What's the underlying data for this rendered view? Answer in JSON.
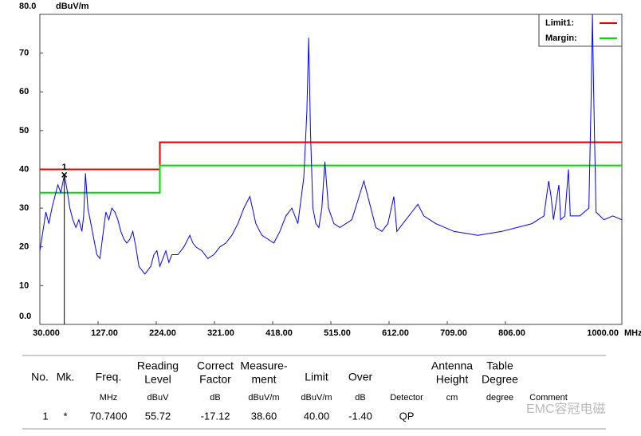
{
  "chart_data": {
    "type": "line",
    "y_axis_label": "dBuV/m",
    "x_axis_label": "MHz",
    "xlim": [
      30,
      1000
    ],
    "ylim": [
      0,
      80
    ],
    "xticks": [
      {
        "value": 30,
        "label": "30.000"
      },
      {
        "value": 127,
        "label": "127.00"
      },
      {
        "value": 224,
        "label": "224.00"
      },
      {
        "value": 321,
        "label": "321.00"
      },
      {
        "value": 418,
        "label": "418.00"
      },
      {
        "value": 515,
        "label": "515.00"
      },
      {
        "value": 612,
        "label": "612.00"
      },
      {
        "value": 709,
        "label": "709.00"
      },
      {
        "value": 806,
        "label": "806.00"
      },
      {
        "value": 1000,
        "label": "1000.00"
      }
    ],
    "yticks": [
      {
        "value": 0,
        "label": "0.0"
      },
      10,
      20,
      30,
      40,
      50,
      60,
      70,
      {
        "value": 80,
        "label": "80.0"
      }
    ],
    "trace": {
      "color": "#0000ff",
      "x": [
        30,
        35,
        40,
        45,
        50,
        55,
        60,
        65,
        70.74,
        75,
        80,
        85,
        90,
        95,
        100,
        103,
        106,
        110,
        115,
        120,
        125,
        130,
        135,
        140,
        145,
        150,
        155,
        160,
        165,
        170,
        175,
        180,
        185,
        190,
        195,
        200,
        205,
        210,
        215,
        220,
        225,
        230,
        235,
        240,
        245,
        250,
        260,
        270,
        280,
        285,
        290,
        300,
        310,
        320,
        330,
        340,
        350,
        360,
        370,
        380,
        390,
        400,
        410,
        420,
        430,
        440,
        450,
        460,
        470,
        475,
        478,
        481,
        485,
        490,
        495,
        500,
        505,
        511,
        520,
        530,
        540,
        550,
        560,
        570,
        580,
        590,
        600,
        610,
        620,
        625,
        640,
        650,
        660,
        670,
        690,
        720,
        760,
        800,
        850,
        870,
        878,
        882,
        886,
        895,
        898,
        905,
        911,
        914,
        930,
        945,
        949,
        951,
        953,
        957,
        970,
        985,
        1000
      ],
      "values": [
        19,
        24,
        29,
        26,
        30,
        33,
        36,
        34,
        38.6,
        35,
        30,
        27,
        25,
        27,
        24,
        28,
        39,
        30,
        26,
        22,
        18,
        17,
        23,
        29,
        27,
        30,
        29,
        27,
        24,
        22,
        21,
        22,
        24,
        20,
        15,
        14,
        13,
        14,
        15,
        18,
        19,
        15,
        17,
        19,
        16,
        18,
        18,
        20,
        23,
        21,
        20,
        19,
        17,
        18,
        20,
        21,
        23,
        26,
        30,
        33,
        26,
        23,
        22,
        21,
        24,
        28,
        30,
        26,
        38,
        55,
        74,
        50,
        30,
        26,
        25,
        30,
        42,
        30,
        26,
        25,
        26,
        27,
        32,
        37,
        31,
        25,
        24,
        26,
        33,
        24,
        27,
        29,
        31,
        28,
        26,
        24,
        23,
        24,
        26,
        28,
        37,
        33,
        27,
        36,
        27,
        28,
        40,
        28,
        28,
        30,
        60,
        80,
        60,
        29,
        27,
        28,
        27
      ]
    },
    "series": [
      {
        "name": "Limit1:",
        "color": "#ee0000",
        "x": [
          30,
          230,
          230,
          1000
        ],
        "values": [
          40,
          40,
          47,
          47
        ]
      },
      {
        "name": "Margin:",
        "color": "#00dd00",
        "x": [
          30,
          230,
          230,
          1000
        ],
        "values": [
          34,
          34,
          41,
          41
        ]
      }
    ],
    "marker": {
      "label": "1",
      "x": 70.74,
      "value": 38.6
    }
  },
  "table": {
    "header": [
      [
        "No."
      ],
      [
        "Mk."
      ],
      [
        "Freq."
      ],
      [
        "Reading",
        "Level"
      ],
      [
        "Correct",
        "Factor"
      ],
      [
        "Measure-",
        "ment"
      ],
      [
        "Limit"
      ],
      [
        "Over"
      ],
      [],
      [
        "Antenna",
        "Height"
      ],
      [
        "Table",
        "Degree"
      ],
      []
    ],
    "units": [
      "",
      "",
      "MHz",
      "dBuV",
      "dB",
      "dBuV/m",
      "dBuV/m",
      "dB",
      "Detector",
      "cm",
      "degree",
      "Comment"
    ],
    "rows": [
      [
        "1",
        "*",
        "70.7400",
        "55.72",
        "-17.12",
        "38.60",
        "40.00",
        "-1.40",
        "QP",
        "",
        "",
        ""
      ]
    ]
  },
  "watermark": "EMC容冠电磁"
}
